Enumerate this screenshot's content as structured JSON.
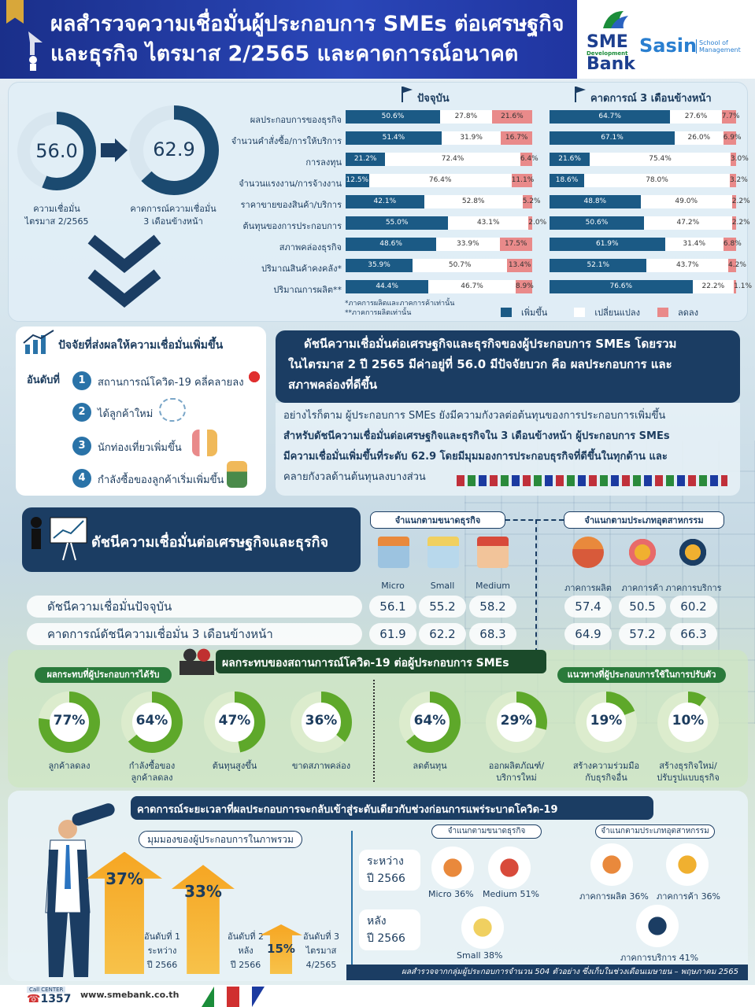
{
  "header": {
    "line1": "ผลสำรวจความเชื่อมั่นผู้ประกอบการ SMEs ต่อเศรษฐกิจ",
    "line2": "และธุรกิจ ไตรมาส 2/2565 และคาดการณ์อนาคต"
  },
  "logos": {
    "sme": "SME",
    "sme_sub": "Development",
    "sme_bank": "Bank",
    "sasin": "Sasin",
    "sasin_sub1": "School of",
    "sasin_sub2": "Management"
  },
  "summary": {
    "current_value": "56.0",
    "current_label1": "ความเชื่อมั่น",
    "current_label2": "ไตรมาส 2/2565",
    "forecast_value": "62.9",
    "forecast_label1": "คาดการณ์ความเชื่อมั่น",
    "forecast_label2": "3 เดือนข้างหน้า"
  },
  "chart_data": {
    "type": "bar",
    "stacked": true,
    "percent": true,
    "panels": [
      "ปัจจุบัน",
      "คาดการณ์ 3 เดือนข้างหน้า"
    ],
    "categories": [
      "ผลประกอบการของธุรกิจ",
      "จำนวนคำสั่งซื้อ/การให้บริการ",
      "การลงทุน",
      "จำนวนแรงงาน/การจ้างงาน",
      "ราคาขายของสินค้า/บริการ",
      "ต้นทุนของการประกอบการ",
      "สภาพคล่องธุรกิจ",
      "ปริมาณสินค้าคงคลัง*",
      "ปริมาณการผลิต**"
    ],
    "legend": [
      "เพิ่มขึ้น",
      "เปลี่ยนแปลง",
      "ลดลง"
    ],
    "current": {
      "increase": [
        50.6,
        51.4,
        21.2,
        12.5,
        42.1,
        55.0,
        48.6,
        35.9,
        44.4
      ],
      "same": [
        27.8,
        31.9,
        72.4,
        76.4,
        52.8,
        43.1,
        33.9,
        50.7,
        46.7
      ],
      "decrease": [
        21.6,
        16.7,
        6.4,
        11.1,
        5.2,
        2.0,
        17.5,
        13.4,
        8.9
      ]
    },
    "forecast": {
      "increase": [
        64.7,
        67.1,
        21.6,
        18.6,
        48.8,
        50.6,
        61.9,
        52.1,
        76.6
      ],
      "same": [
        27.6,
        26.0,
        75.4,
        78.0,
        49.0,
        47.2,
        31.4,
        43.7,
        22.2
      ],
      "decrease": [
        7.7,
        6.9,
        3.0,
        3.2,
        2.2,
        2.2,
        6.8,
        4.2,
        1.1
      ]
    },
    "notes": [
      "*ภาคการผลิตและภาคการค้าเท่านั้น",
      "**ภาคการผลิตเท่านั้น"
    ],
    "colors": {
      "increase": "#1b5a85",
      "same": "#ffffff",
      "decrease": "#e98a8a"
    }
  },
  "factors": {
    "title": "ปัจจัยที่ส่งผลให้ความเชื่อมั่นเพิ่มขึ้น",
    "rank_label": "อันดับที่",
    "items": [
      {
        "n": "1",
        "text": "สถานการณ์โควิด-19 คลี่คลายลง"
      },
      {
        "n": "2",
        "text": "ได้ลูกค้าใหม่"
      },
      {
        "n": "3",
        "text": "นักท่องเที่ยวเพิ่มขึ้น"
      },
      {
        "n": "4",
        "text": "กำลังซื้อของลูกค้าเริ่มเพิ่มขึ้น"
      }
    ]
  },
  "headline": {
    "l1": "ดัชนีความเชื่อมั่นต่อเศรษฐกิจและธุรกิจของผู้ประกอบการ SMEs โดยรวม",
    "l2": "ในไตรมาส 2 ปี 2565 มีค่าอยู่ที่ 56.0 มีปัจจัยบวก คือ ผลประกอบการ และ",
    "l3": "สภาพคล่องที่ดีขึ้น"
  },
  "body": {
    "l1": "อย่างไรก็ตาม ผู้ประกอบการ SMEs ยังมีความกังวลต่อต้นทุนของการประกอบการเพิ่มขึ้น",
    "l2": "สำหรับดัชนีความเชื่อมั่นต่อเศรษฐกิจและธุรกิจใน 3 เดือนข้างหน้า ผู้ประกอบการ SMEs",
    "l3": "มีความเชื่อมั่นเพิ่มขึ้นที่ระดับ 62.9  โดยมีมุมมองการประกอบธุรกิจที่ดีขึ้นในทุกด้าน และ",
    "l4": "คลายกังวลด้านต้นทุนลงบางส่วน"
  },
  "index": {
    "title": "ดัชนีความเชื่อมั่นต่อเศรษฐกิจและธุรกิจ",
    "size_head": "จำแนกตามขนาดธุรกิจ",
    "ind_head": "จำแนกตามประเภทอุตสาหกรรม",
    "cols": [
      "Micro",
      "Small",
      "Medium",
      "ภาคการผลิต",
      "ภาคการค้า",
      "ภาคการบริการ"
    ],
    "row1_label": "ดัชนีความเชื่อมั่นปัจจุบัน",
    "row1": [
      "56.1",
      "55.2",
      "58.2",
      "57.4",
      "50.5",
      "60.2"
    ],
    "row2_label": "คาดการณ์ดัชนีความเชื่อมั่น 3 เดือนข้างหน้า",
    "row2": [
      "61.9",
      "62.2",
      "68.3",
      "64.9",
      "57.2",
      "66.3"
    ]
  },
  "covid": {
    "title": "ผลกระทบของสถานการณ์โควิด-19 ต่อผู้ประกอบการ SMEs",
    "left_head": "ผลกระทบที่ผู้ประกอบการได้รับ",
    "right_head": "แนวทางที่ผู้ประกอบการใช้ในการปรับตัว",
    "impacts": [
      {
        "pct": "77%",
        "value": 77,
        "l1": "ลูกค้าลดลง",
        "l2": ""
      },
      {
        "pct": "64%",
        "value": 64,
        "l1": "กำลังซื้อของ",
        "l2": "ลูกค้าลดลง"
      },
      {
        "pct": "47%",
        "value": 47,
        "l1": "ต้นทุนสูงขึ้น",
        "l2": ""
      },
      {
        "pct": "36%",
        "value": 36,
        "l1": "ขาดสภาพคล่อง",
        "l2": ""
      }
    ],
    "adapt": [
      {
        "pct": "64%",
        "value": 64,
        "l1": "ลดต้นทุน",
        "l2": ""
      },
      {
        "pct": "29%",
        "value": 29,
        "l1": "ออกผลิตภัณฑ์/",
        "l2": "บริการใหม่"
      },
      {
        "pct": "19%",
        "value": 19,
        "l1": "สร้างความร่วมมือ",
        "l2": "กับธุรกิจอื่น"
      },
      {
        "pct": "10%",
        "value": 10,
        "l1": "สร้างธุรกิจใหม่/",
        "l2": "ปรับรูปแบบธุรกิจ"
      }
    ]
  },
  "recovery": {
    "title": "คาดการณ์ระยะเวลาที่ผลประกอบการจะกลับเข้าสู่ระดับเดียวกับช่วงก่อนการแพร่ระบาดโควิด-19",
    "overall_head": "มุมมองของผู้ประกอบการในภาพรวม",
    "arrows": [
      {
        "pct": "37%",
        "value": 37,
        "l1": "อันดับที่ 1",
        "l2": "ระหว่าง",
        "l3": "ปี 2566"
      },
      {
        "pct": "33%",
        "value": 33,
        "l1": "อันดับที่ 2",
        "l2": "หลัง",
        "l3": "ปี 2566"
      },
      {
        "pct": "15%",
        "value": 15,
        "l1": "อันดับที่ 3",
        "l2": "ไตรมาส",
        "l3": "4/2565"
      }
    ],
    "size_head": "จำแนกตามขนาดธุรกิจ",
    "ind_head": "จำแนกตามประเภทอุตสาหกรรม",
    "during_l1": "ระหว่าง",
    "during_l2": "ปี 2566",
    "after_l1": "หลัง",
    "after_l2": "ปี 2566",
    "micro": "Micro 36%",
    "medium": "Medium 51%",
    "small": "Small 38%",
    "mfg": "ภาคการผลิต 36%",
    "trade": "ภาคการค้า 36%",
    "service": "ภาคการบริการ 41%",
    "source": "ผลสำรวจจากกลุ่มผู้ประกอบการจำนวน 504 ตัวอย่าง ซึ่งเก็บในช่วงเดือนเมษายน – พฤษภาคม 2565"
  },
  "footer": {
    "callcenter": "Call CENTER",
    "phone": "1357",
    "url": "www.smebank.co.th"
  }
}
